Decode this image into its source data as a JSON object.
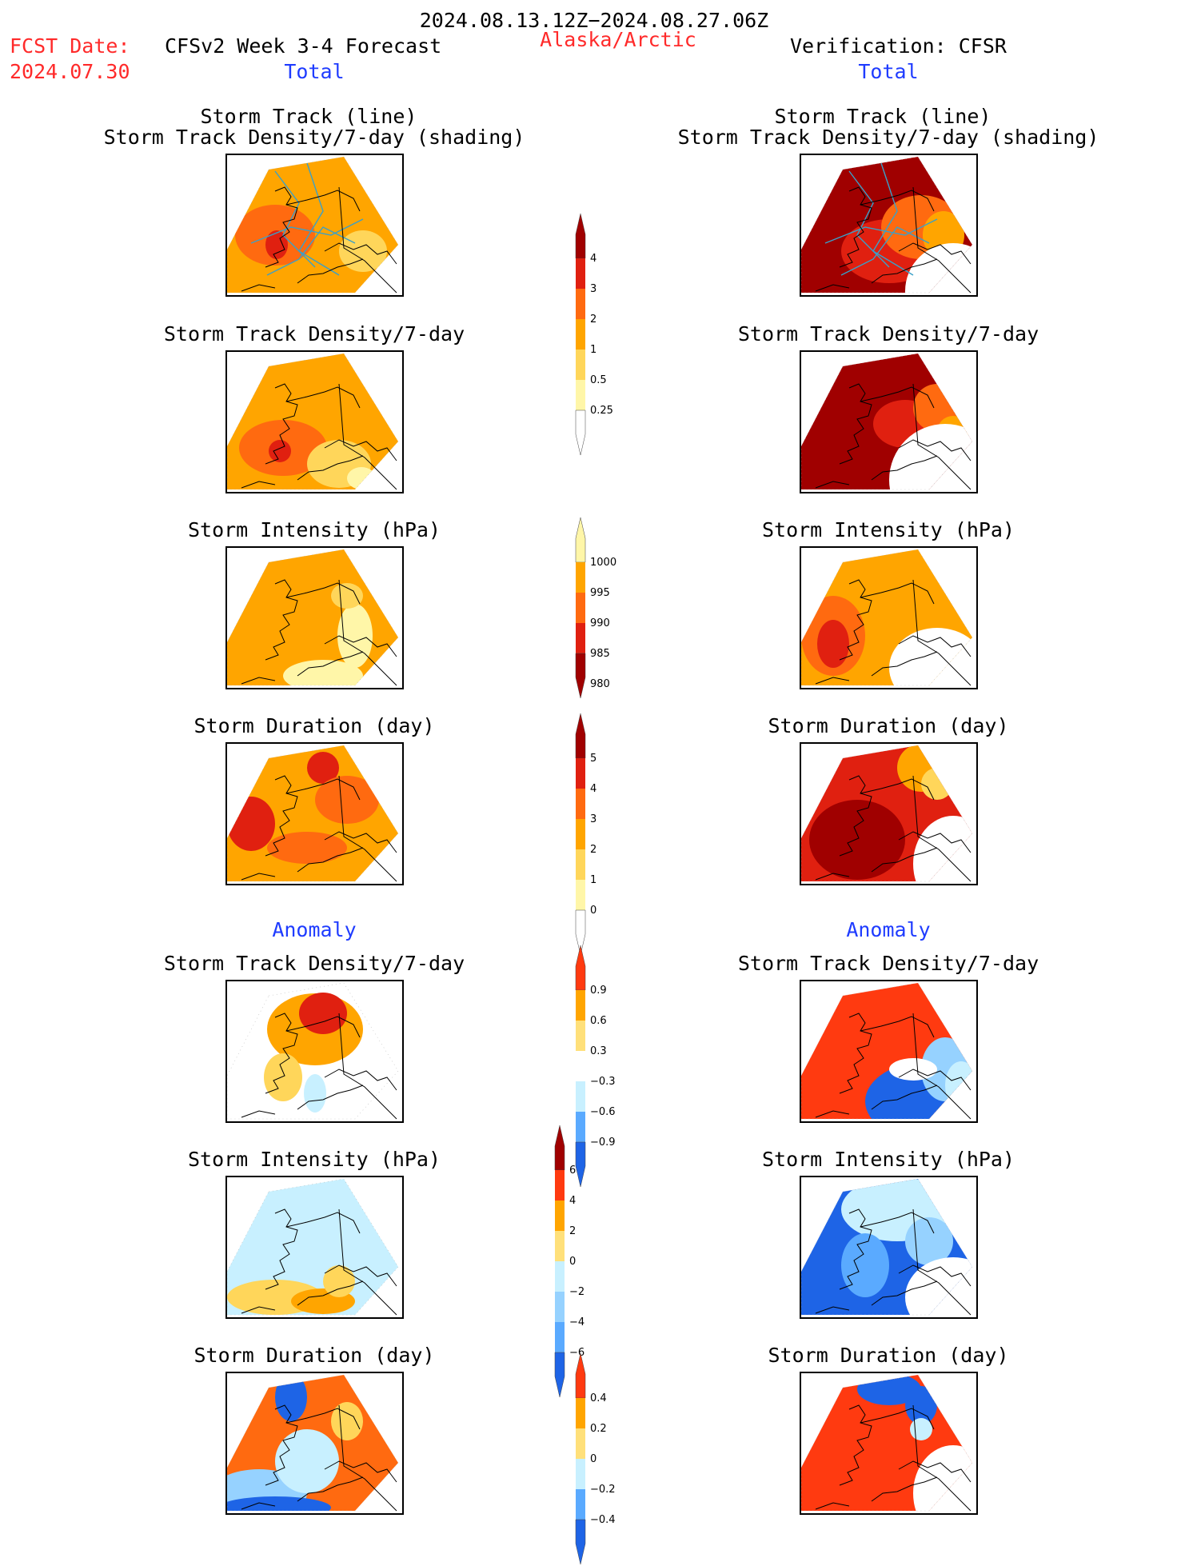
{
  "header": {
    "period": "2024.08.13.12Z−2024.08.27.06Z",
    "fcst_label": "FCST Date:",
    "fcst_date": "2024.07.30",
    "forecast_title": "CFSv2 Week 3-4 Forecast",
    "region": "Alaska/Arctic",
    "verification": "Verification: CFSR",
    "left_total": "Total",
    "right_total": "Total",
    "left_anomaly": "Anomaly",
    "right_anomaly": "Anomaly"
  },
  "panels": {
    "track_title_1": "Storm Track (line)",
    "track_title_2": "Storm Track Density/7-day (shading)",
    "density": "Storm Track Density/7-day",
    "intensity": "Storm Intensity (hPa)",
    "duration": "Storm Duration (day)"
  },
  "colorbars": {
    "density": [
      "4",
      "3",
      "2",
      "1",
      "0.5",
      "0.25"
    ],
    "intensity": [
      "1000",
      "995",
      "990",
      "985",
      "980"
    ],
    "duration": [
      "5",
      "4",
      "3",
      "2",
      "1",
      "0"
    ],
    "density_anom": [
      "0.9",
      "0.6",
      "0.3",
      "−0.3",
      "−0.6",
      "−0.9"
    ],
    "intensity_anom": [
      "6",
      "4",
      "2",
      "0",
      "−2",
      "−4",
      "−6"
    ],
    "duration_anom": [
      "0.4",
      "0.2",
      "0",
      "−0.2",
      "−0.4"
    ]
  },
  "colors": {
    "title_red": "#ff2a2a",
    "title_blue": "#1f3cff",
    "warm": [
      "#fff6a8",
      "#ffd65a",
      "#ffa500",
      "#ff6a10",
      "#e02010",
      "#a00000"
    ],
    "cool": [
      "#c8f0ff",
      "#96d2ff",
      "#5aaaff",
      "#1e64e6"
    ]
  }
}
